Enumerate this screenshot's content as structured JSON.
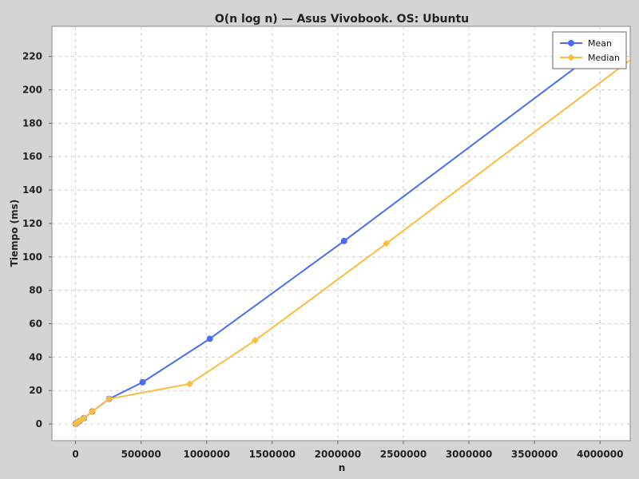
{
  "chart_data": {
    "type": "line",
    "title": "O(n log n) — Asus Vivobook. OS: Ubuntu",
    "xlabel": "n",
    "ylabel": "Tiempo (ms)",
    "xlim": [
      -180000,
      4230000
    ],
    "ylim": [
      -10,
      238
    ],
    "xticks": [
      0,
      500000,
      1000000,
      1500000,
      2000000,
      2500000,
      3000000,
      3500000,
      4000000
    ],
    "yticks": [
      0,
      20,
      40,
      60,
      80,
      100,
      120,
      140,
      160,
      180,
      200,
      220
    ],
    "grid": true,
    "legend_position": "top-right",
    "series": [
      {
        "name": "Mean",
        "color": "#4a6cf7",
        "marker": "circle",
        "x": [
          1000,
          2000,
          4000,
          8000,
          16000,
          32000,
          64000,
          128000,
          256000,
          512000,
          1024000,
          2048000,
          4096000
        ],
        "y": [
          0.1,
          0.2,
          0.3,
          0.6,
          1.0,
          1.8,
          3.5,
          7.5,
          15,
          25,
          51,
          109.5,
          230
        ]
      },
      {
        "name": "Median",
        "color": "#fbbd3c",
        "marker": "diamond",
        "x": [
          1000,
          2000,
          4000,
          8000,
          16000,
          32000,
          64000,
          128000,
          256000,
          870000,
          1370000,
          2370000,
          4250000
        ],
        "y": [
          0.1,
          0.2,
          0.3,
          0.6,
          1.0,
          1.8,
          3.5,
          7.5,
          15,
          24,
          50,
          108,
          219
        ]
      }
    ]
  }
}
